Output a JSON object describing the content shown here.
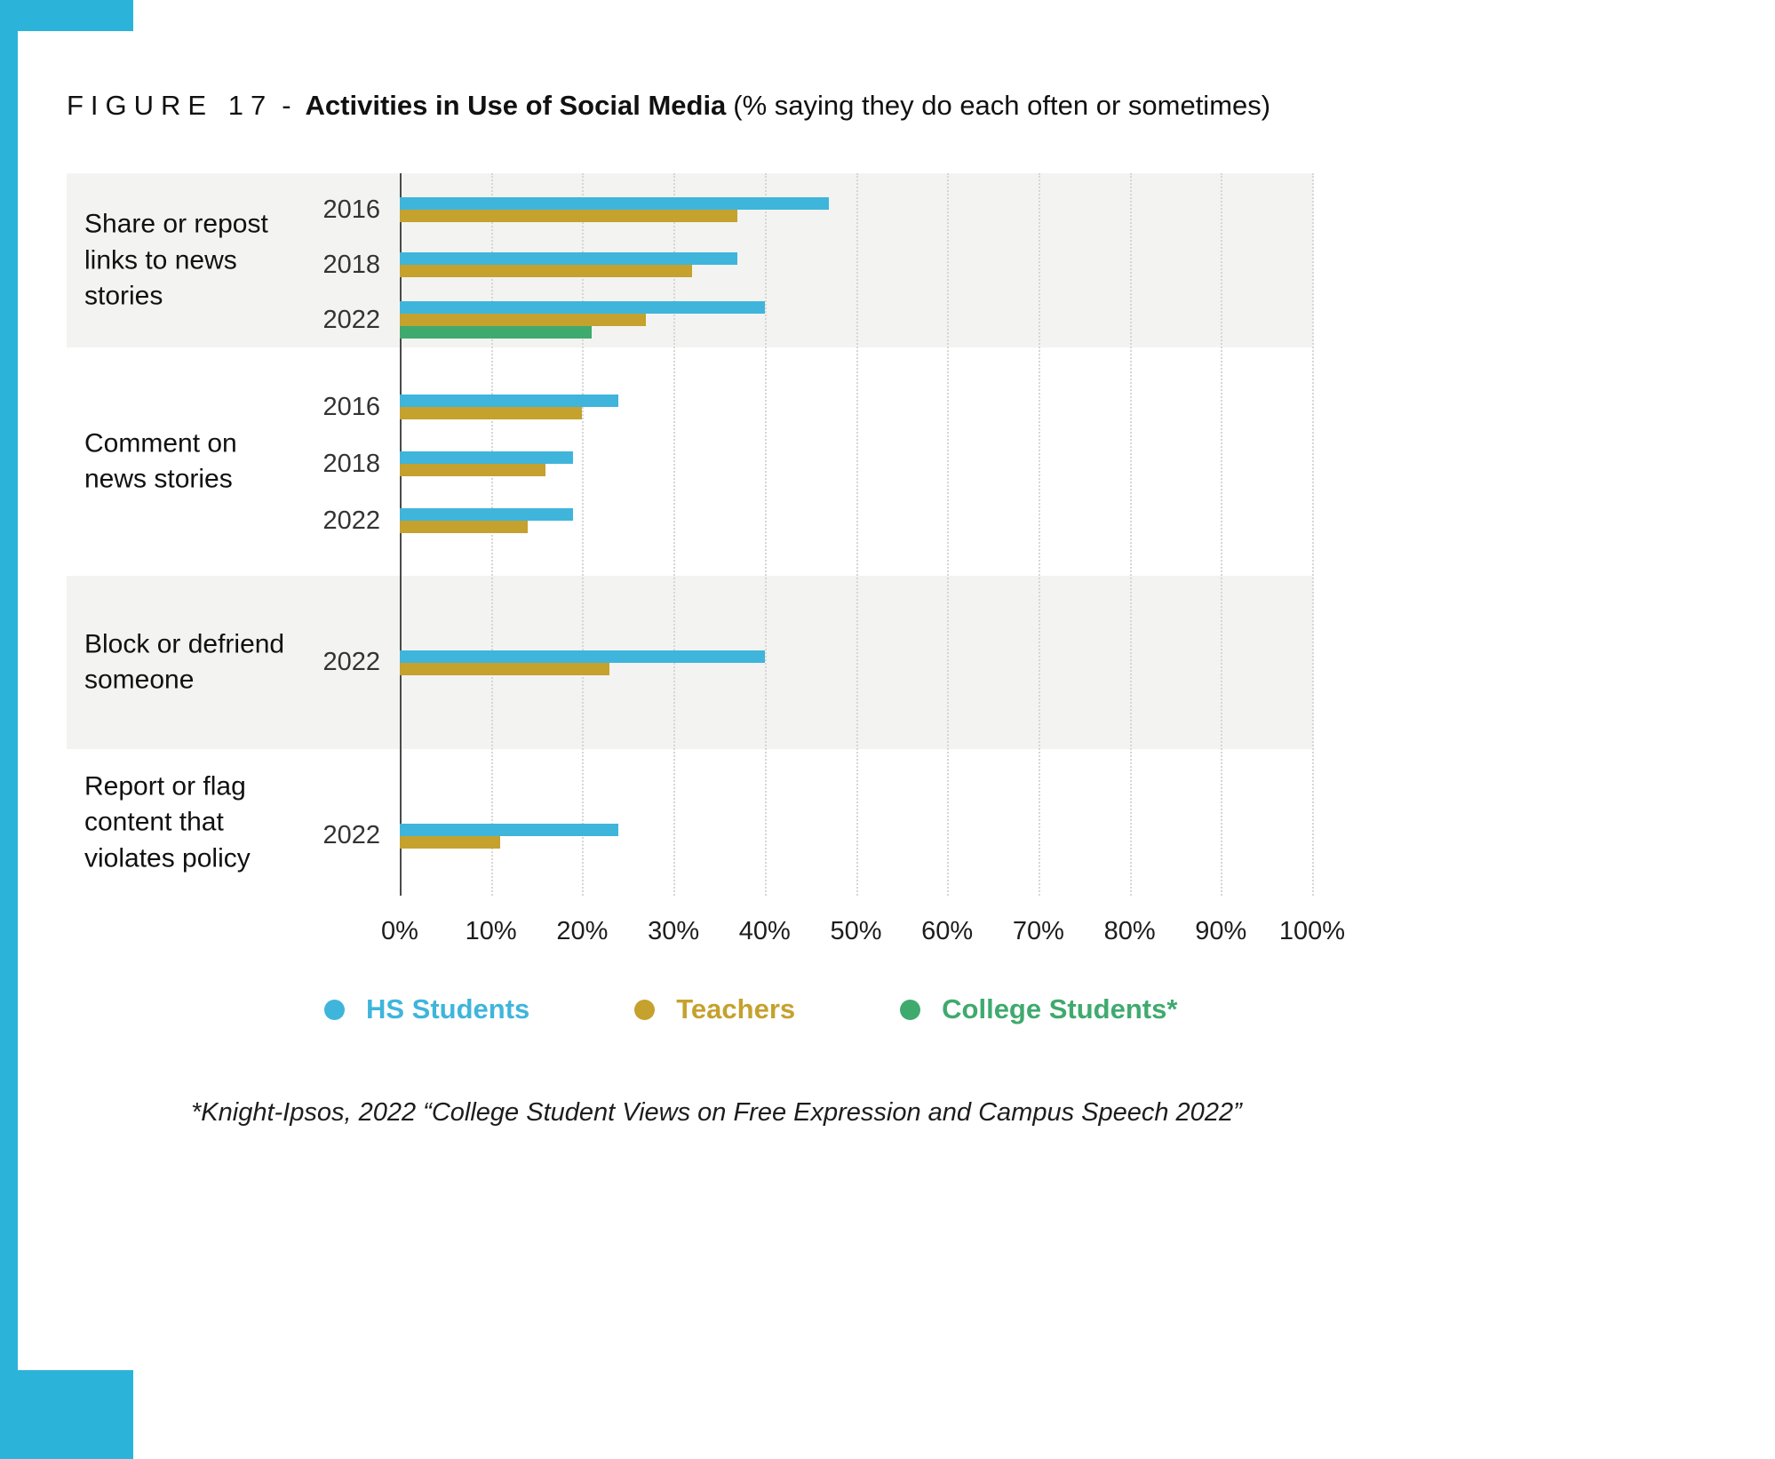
{
  "page": {
    "accent_color": "#2BB3DA"
  },
  "figure": {
    "label": "FIGURE 17",
    "separator": "-",
    "title_bold": "Activities in Use of Social Media",
    "title_note": "(% saying they do each often or sometimes)"
  },
  "series": [
    {
      "name": "HS Students",
      "color": "#3FB5DB"
    },
    {
      "name": "Teachers",
      "color": "#C5A12E"
    },
    {
      "name": "College Students*",
      "color": "#3FAA6E"
    }
  ],
  "footnote": "*Knight-Ipsos, 2022 “College Student Views on Free Expression and Campus Speech 2022”",
  "chart_data": {
    "type": "bar",
    "orientation": "horizontal",
    "title": "Activities in Use of Social Media",
    "subtitle": "% saying they do each often or sometimes",
    "xlabel": "",
    "ylabel": "",
    "xlim": [
      0,
      100
    ],
    "x_tick_labels": [
      "0%",
      "10%",
      "20%",
      "30%",
      "40%",
      "50%",
      "60%",
      "70%",
      "80%",
      "90%",
      "100%"
    ],
    "grid": "vertical-dotted",
    "legend_position": "bottom",
    "groups": [
      {
        "category": "Share or repost links to news stories",
        "shaded": true,
        "rows": [
          {
            "year": "2016",
            "bars": [
              {
                "series": "HS Students",
                "value": 47
              },
              {
                "series": "Teachers",
                "value": 37
              }
            ]
          },
          {
            "year": "2018",
            "bars": [
              {
                "series": "HS Students",
                "value": 37
              },
              {
                "series": "Teachers",
                "value": 32
              }
            ]
          },
          {
            "year": "2022",
            "bars": [
              {
                "series": "HS Students",
                "value": 40
              },
              {
                "series": "Teachers",
                "value": 27
              },
              {
                "series": "College Students*",
                "value": 21
              }
            ]
          }
        ]
      },
      {
        "category": "Comment on news stories",
        "shaded": false,
        "rows": [
          {
            "year": "2016",
            "bars": [
              {
                "series": "HS Students",
                "value": 24
              },
              {
                "series": "Teachers",
                "value": 20
              }
            ]
          },
          {
            "year": "2018",
            "bars": [
              {
                "series": "HS Students",
                "value": 19
              },
              {
                "series": "Teachers",
                "value": 16
              }
            ]
          },
          {
            "year": "2022",
            "bars": [
              {
                "series": "HS Students",
                "value": 19
              },
              {
                "series": "Teachers",
                "value": 14
              }
            ]
          }
        ]
      },
      {
        "category": "Block or defriend someone",
        "shaded": true,
        "rows": [
          {
            "year": "2022",
            "bars": [
              {
                "series": "HS Students",
                "value": 40
              },
              {
                "series": "Teachers",
                "value": 23
              }
            ]
          }
        ]
      },
      {
        "category": "Report or flag content that violates policy",
        "shaded": false,
        "rows": [
          {
            "year": "2022",
            "bars": [
              {
                "series": "HS Students",
                "value": 24
              },
              {
                "series": "Teachers",
                "value": 11
              }
            ]
          }
        ]
      }
    ]
  }
}
